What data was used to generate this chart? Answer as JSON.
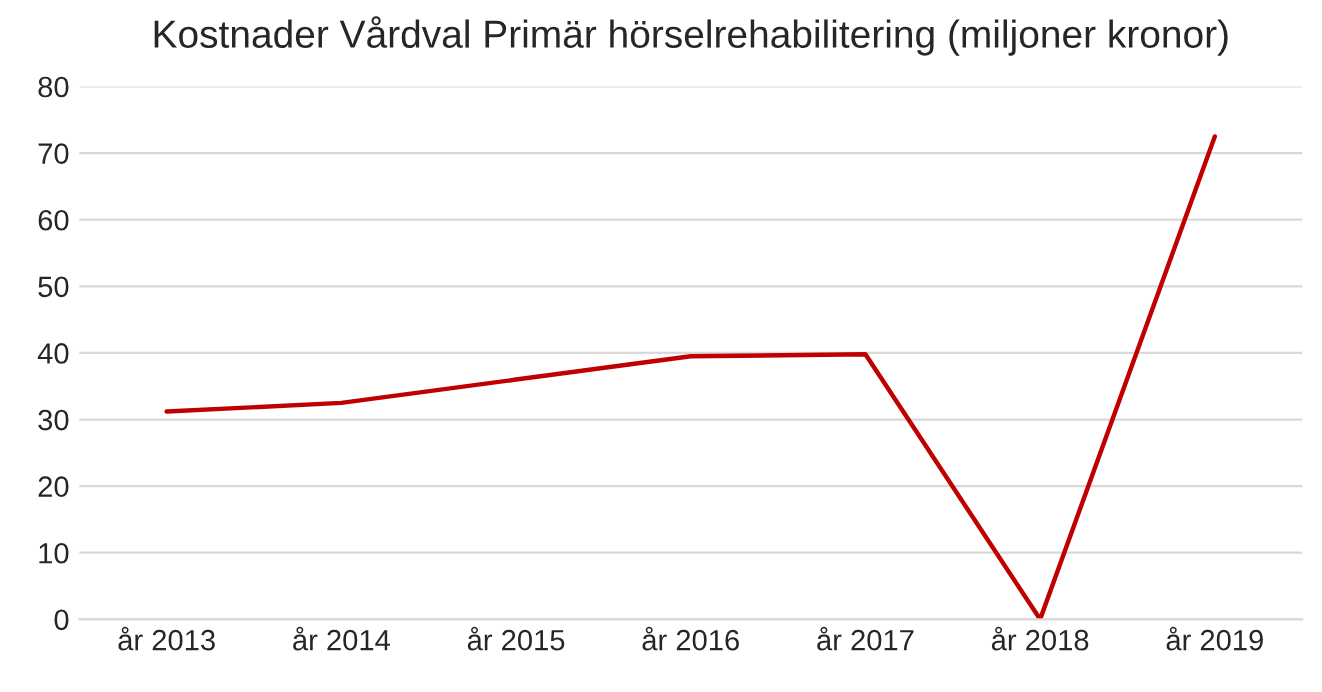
{
  "chart_data": {
    "type": "line",
    "title": "Kostnader Vårdval Primär hörselrehabilitering (miljoner kronor)",
    "categories": [
      "år 2013",
      "år 2014",
      "år 2015",
      "år 2016",
      "år 2017",
      "år 2018",
      "år 2019"
    ],
    "series": [
      {
        "color": "#c00000",
        "values": [
          31.2,
          32.5,
          36,
          39.5,
          39.8,
          0,
          72.5
        ]
      }
    ],
    "ylim": [
      0,
      80
    ],
    "yticks": [
      0,
      10,
      20,
      30,
      40,
      50,
      60,
      70,
      80
    ],
    "grid": "y",
    "legend": false,
    "marker": "none",
    "line_style": "solid"
  }
}
